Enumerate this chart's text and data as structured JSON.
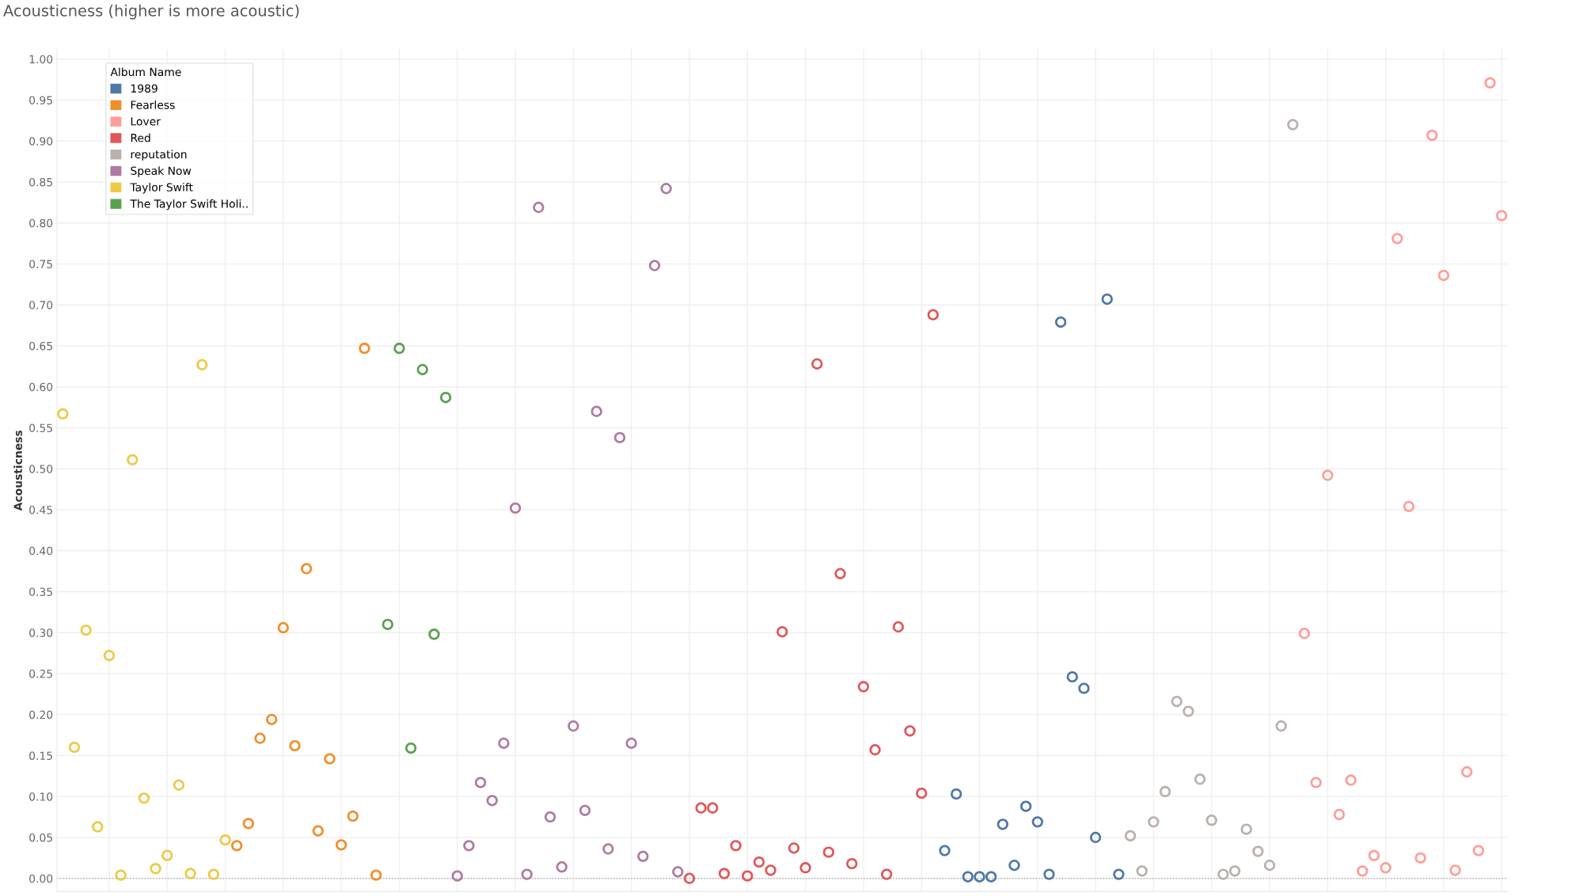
{
  "chart_data": {
    "type": "scatter",
    "title": "Acousticness (higher is more acoustic)",
    "ylabel": "Acousticness",
    "legend_title": "Album Name",
    "categories": [
      null,
      null,
      null,
      null,
      null,
      null,
      null,
      null,
      null,
      null,
      null,
      null,
      null,
      null,
      null,
      null,
      null,
      null,
      null,
      null,
      null,
      null,
      null,
      null,
      null,
      null,
      null,
      null,
      null,
      null,
      null,
      null,
      null,
      null,
      null,
      null,
      null,
      null,
      null,
      null,
      null,
      null,
      null,
      null,
      null,
      null,
      null,
      null,
      null,
      null,
      null,
      null,
      null,
      null,
      null,
      null,
      null,
      null,
      null,
      null,
      null,
      null,
      null,
      null,
      null,
      null,
      null,
      null,
      null,
      null,
      null,
      null,
      null,
      null,
      null,
      null,
      null,
      null,
      null,
      null,
      null,
      null,
      null,
      null,
      null,
      null,
      null,
      null,
      null,
      null,
      null,
      null,
      null,
      null,
      null,
      null,
      null,
      null,
      null,
      null,
      null,
      null,
      null,
      null,
      null,
      null,
      null,
      null,
      null,
      null,
      null,
      null,
      null,
      null,
      null,
      null,
      null,
      null,
      null,
      null,
      null,
      null,
      null,
      null,
      null
    ],
    "series": [
      {
        "name": "1989",
        "color": "#4e79a7",
        "values": [
          null,
          null,
          null,
          null,
          null,
          null,
          null,
          null,
          null,
          null,
          null,
          null,
          null,
          null,
          null,
          null,
          null,
          null,
          null,
          null,
          null,
          null,
          null,
          null,
          null,
          null,
          null,
          null,
          null,
          null,
          null,
          null,
          null,
          null,
          null,
          null,
          null,
          null,
          null,
          null,
          null,
          null,
          null,
          null,
          null,
          null,
          null,
          null,
          null,
          null,
          null,
          null,
          null,
          null,
          null,
          null,
          null,
          null,
          null,
          null,
          null,
          null,
          null,
          null,
          null,
          null,
          null,
          null,
          null,
          null,
          null,
          null,
          null,
          null,
          null,
          null,
          0.034,
          0.103,
          0.002,
          0.002,
          0.002,
          0.066,
          0.016,
          0.088,
          0.069,
          0.005,
          0.679,
          0.246,
          0.232,
          0.05,
          0.707,
          0.005,
          null,
          null,
          null,
          null,
          null,
          null,
          null,
          null,
          null,
          null,
          null,
          null,
          null,
          null,
          null,
          null,
          null,
          null,
          null,
          null,
          null,
          null,
          null,
          null,
          null,
          null,
          null,
          null,
          null,
          null,
          null,
          null,
          null
        ]
      },
      {
        "name": "Fearless",
        "color": "#f28e2b",
        "values": [
          null,
          null,
          null,
          null,
          null,
          null,
          null,
          null,
          null,
          null,
          null,
          null,
          null,
          null,
          null,
          0.04,
          0.067,
          0.171,
          0.194,
          0.306,
          0.162,
          0.378,
          0.058,
          0.146,
          0.041,
          0.076,
          0.647,
          0.004,
          null,
          null,
          null,
          null,
          null,
          null,
          null,
          null,
          null,
          null,
          null,
          null,
          null,
          null,
          null,
          null,
          null,
          null,
          null,
          null,
          null,
          null,
          null,
          null,
          null,
          null,
          null,
          null,
          null,
          null,
          null,
          null,
          null,
          null,
          null,
          null,
          null,
          null,
          null,
          null,
          null,
          null,
          null,
          null,
          null,
          null,
          null,
          null,
          null,
          null,
          null,
          null,
          null,
          null,
          null,
          null,
          null,
          null,
          null,
          null,
          null,
          null,
          null,
          null,
          null,
          null,
          null,
          null,
          null,
          null,
          null,
          null,
          null,
          null,
          null,
          null,
          null,
          null,
          null,
          null,
          null,
          null,
          null,
          null,
          null,
          null,
          null,
          null,
          null,
          null,
          null,
          null,
          null,
          null,
          null,
          null,
          null
        ]
      },
      {
        "name": "Lover",
        "color": "#ff9d9a",
        "values": [
          null,
          null,
          null,
          null,
          null,
          null,
          null,
          null,
          null,
          null,
          null,
          null,
          null,
          null,
          null,
          null,
          null,
          null,
          null,
          null,
          null,
          null,
          null,
          null,
          null,
          null,
          null,
          null,
          null,
          null,
          null,
          null,
          null,
          null,
          null,
          null,
          null,
          null,
          null,
          null,
          null,
          null,
          null,
          null,
          null,
          null,
          null,
          null,
          null,
          null,
          null,
          null,
          null,
          null,
          null,
          null,
          null,
          null,
          null,
          null,
          null,
          null,
          null,
          null,
          null,
          null,
          null,
          null,
          null,
          null,
          null,
          null,
          null,
          null,
          null,
          null,
          null,
          null,
          null,
          null,
          null,
          null,
          null,
          null,
          null,
          null,
          null,
          null,
          null,
          null,
          null,
          null,
          null,
          null,
          null,
          null,
          null,
          null,
          null,
          null,
          null,
          null,
          null,
          null,
          null,
          null,
          null,
          0.299,
          0.117,
          0.492,
          0.078,
          0.12,
          0.009,
          0.028,
          0.013,
          0.781,
          0.454,
          0.025,
          0.907,
          0.736,
          0.01,
          0.13,
          0.034,
          0.971,
          0.809
        ]
      },
      {
        "name": "Red",
        "color": "#e15759",
        "values": [
          null,
          null,
          null,
          null,
          null,
          null,
          null,
          null,
          null,
          null,
          null,
          null,
          null,
          null,
          null,
          null,
          null,
          null,
          null,
          null,
          null,
          null,
          null,
          null,
          null,
          null,
          null,
          null,
          null,
          null,
          null,
          null,
          null,
          null,
          null,
          null,
          null,
          null,
          null,
          null,
          null,
          null,
          null,
          null,
          null,
          null,
          null,
          null,
          null,
          null,
          null,
          null,
          null,
          null,
          0.0,
          0.086,
          0.086,
          0.006,
          0.04,
          0.003,
          0.02,
          0.01,
          0.301,
          0.037,
          0.013,
          0.628,
          0.032,
          0.372,
          0.018,
          0.234,
          0.157,
          0.005,
          0.307,
          0.18,
          0.104,
          0.688,
          null,
          null,
          null,
          null,
          null,
          null,
          null,
          null,
          null,
          null,
          null,
          null,
          null,
          null,
          null,
          null,
          null,
          null,
          null,
          null,
          null,
          null,
          null,
          null,
          null,
          null,
          null,
          null,
          null,
          null,
          null,
          null,
          null,
          null,
          null,
          null,
          null,
          null,
          null,
          null,
          null,
          null,
          null,
          null,
          null,
          null,
          null,
          null,
          null
        ]
      },
      {
        "name": "reputation",
        "color": "#bab0ac",
        "values": [
          null,
          null,
          null,
          null,
          null,
          null,
          null,
          null,
          null,
          null,
          null,
          null,
          null,
          null,
          null,
          null,
          null,
          null,
          null,
          null,
          null,
          null,
          null,
          null,
          null,
          null,
          null,
          null,
          null,
          null,
          null,
          null,
          null,
          null,
          null,
          null,
          null,
          null,
          null,
          null,
          null,
          null,
          null,
          null,
          null,
          null,
          null,
          null,
          null,
          null,
          null,
          null,
          null,
          null,
          null,
          null,
          null,
          null,
          null,
          null,
          null,
          null,
          null,
          null,
          null,
          null,
          null,
          null,
          null,
          null,
          null,
          null,
          null,
          null,
          null,
          null,
          null,
          null,
          null,
          null,
          null,
          null,
          null,
          null,
          null,
          null,
          null,
          null,
          null,
          null,
          null,
          null,
          0.052,
          0.009,
          0.069,
          0.106,
          0.216,
          0.204,
          0.121,
          0.071,
          0.005,
          0.009,
          0.06,
          0.033,
          0.016,
          0.186,
          0.92,
          null,
          null,
          null,
          null,
          null,
          null,
          null,
          null,
          null,
          null,
          null,
          null,
          null,
          null,
          null,
          null,
          null,
          null
        ]
      },
      {
        "name": "Speak Now",
        "color": "#b07aa1",
        "values": [
          null,
          null,
          null,
          null,
          null,
          null,
          null,
          null,
          null,
          null,
          null,
          null,
          null,
          null,
          null,
          null,
          null,
          null,
          null,
          null,
          null,
          null,
          null,
          null,
          null,
          null,
          null,
          null,
          null,
          null,
          null,
          null,
          null,
          null,
          0.003,
          0.04,
          0.117,
          0.095,
          0.165,
          0.452,
          0.005,
          0.819,
          0.075,
          0.014,
          0.186,
          0.083,
          0.57,
          0.036,
          0.538,
          0.165,
          0.027,
          0.748,
          0.842,
          0.008,
          null,
          null,
          null,
          null,
          null,
          null,
          null,
          null,
          null,
          null,
          null,
          null,
          null,
          null,
          null,
          null,
          null,
          null,
          null,
          null,
          null,
          null,
          null,
          null,
          null,
          null,
          null,
          null,
          null,
          null,
          null,
          null,
          null,
          null,
          null,
          null,
          null,
          null,
          null,
          null,
          null,
          null,
          null,
          null,
          null,
          null,
          null,
          null,
          null,
          null,
          null,
          null,
          null,
          null,
          null,
          null,
          null,
          null,
          null,
          null,
          null,
          null,
          null,
          null,
          null,
          null,
          null,
          null,
          null,
          null,
          null
        ]
      },
      {
        "name": "Taylor Swift",
        "color": "#edc948",
        "values": [
          0.567,
          0.16,
          0.303,
          0.063,
          0.272,
          0.004,
          0.511,
          0.098,
          0.012,
          0.028,
          0.114,
          0.006,
          0.627,
          0.005,
          0.047,
          null,
          null,
          null,
          null,
          null,
          null,
          null,
          null,
          null,
          null,
          null,
          null,
          null,
          null,
          null,
          null,
          null,
          null,
          null,
          null,
          null,
          null,
          null,
          null,
          null,
          null,
          null,
          null,
          null,
          null,
          null,
          null,
          null,
          null,
          null,
          null,
          null,
          null,
          null,
          null,
          null,
          null,
          null,
          null,
          null,
          null,
          null,
          null,
          null,
          null,
          null,
          null,
          null,
          null,
          null,
          null,
          null,
          null,
          null,
          null,
          null,
          null,
          null,
          null,
          null,
          null,
          null,
          null,
          null,
          null,
          null,
          null,
          null,
          null,
          null,
          null,
          null,
          null,
          null,
          null,
          null,
          null,
          null,
          null,
          null,
          null,
          null,
          null,
          null,
          null,
          null,
          null,
          null,
          null,
          null,
          null,
          null,
          null,
          null,
          null,
          null,
          null,
          null,
          null,
          null,
          null,
          null,
          null,
          null,
          null
        ]
      },
      {
        "name": "The Taylor Swift Holi..",
        "color": "#59a14f",
        "values": [
          null,
          null,
          null,
          null,
          null,
          null,
          null,
          null,
          null,
          null,
          null,
          null,
          null,
          null,
          null,
          null,
          null,
          null,
          null,
          null,
          null,
          null,
          null,
          null,
          null,
          null,
          null,
          null,
          0.31,
          0.647,
          0.159,
          0.621,
          0.298,
          0.587,
          null,
          null,
          null,
          null,
          null,
          null,
          null,
          null,
          null,
          null,
          null,
          null,
          null,
          null,
          null,
          null,
          null,
          null,
          null,
          null,
          null,
          null,
          null,
          null,
          null,
          null,
          null,
          null,
          null,
          null,
          null,
          null,
          null,
          null,
          null,
          null,
          null,
          null,
          null,
          null,
          null,
          null,
          null,
          null,
          null,
          null,
          null,
          null,
          null,
          null,
          null,
          null,
          null,
          null,
          null,
          null,
          null,
          null,
          null,
          null,
          null,
          null,
          null,
          null,
          null,
          null,
          null,
          null,
          null,
          null,
          null,
          null,
          null,
          null,
          null,
          null,
          null,
          null,
          null,
          null,
          null,
          null,
          null,
          null,
          null,
          null,
          null,
          null,
          null,
          null,
          null
        ]
      }
    ],
    "ylim": [
      -0.016,
      1.012
    ],
    "yticks": [
      {
        "value": 0,
        "label": "0.00"
      },
      {
        "value": 0.05,
        "label": "0.05"
      },
      {
        "value": 0.1,
        "label": "0.10"
      },
      {
        "value": 0.15,
        "label": "0.15"
      },
      {
        "value": 0.2,
        "label": "0.20"
      },
      {
        "value": 0.25,
        "label": "0.25"
      },
      {
        "value": 0.3,
        "label": "0.30"
      },
      {
        "value": 0.35,
        "label": "0.35"
      },
      {
        "value": 0.4,
        "label": "0.40"
      },
      {
        "value": 0.45,
        "label": "0.45"
      },
      {
        "value": 0.5,
        "label": "0.50"
      },
      {
        "value": 0.55,
        "label": "0.55"
      },
      {
        "value": 0.6,
        "label": "0.60"
      },
      {
        "value": 0.65,
        "label": "0.65"
      },
      {
        "value": 0.7,
        "label": "0.70"
      },
      {
        "value": 0.75,
        "label": "0.75"
      },
      {
        "value": 0.8,
        "label": "0.80"
      },
      {
        "value": 0.85,
        "label": "0.85"
      },
      {
        "value": 0.9,
        "label": "0.90"
      },
      {
        "value": 0.95,
        "label": "0.95"
      },
      {
        "value": 1,
        "label": "1.00"
      }
    ],
    "ref_lines": [
      {
        "axis": "y",
        "value": 0,
        "color": "#b0b0b0",
        "line_style": "dotted"
      }
    ],
    "grid": true,
    "legend": "top left",
    "marker": "circle",
    "tick_labels": "y"
  }
}
